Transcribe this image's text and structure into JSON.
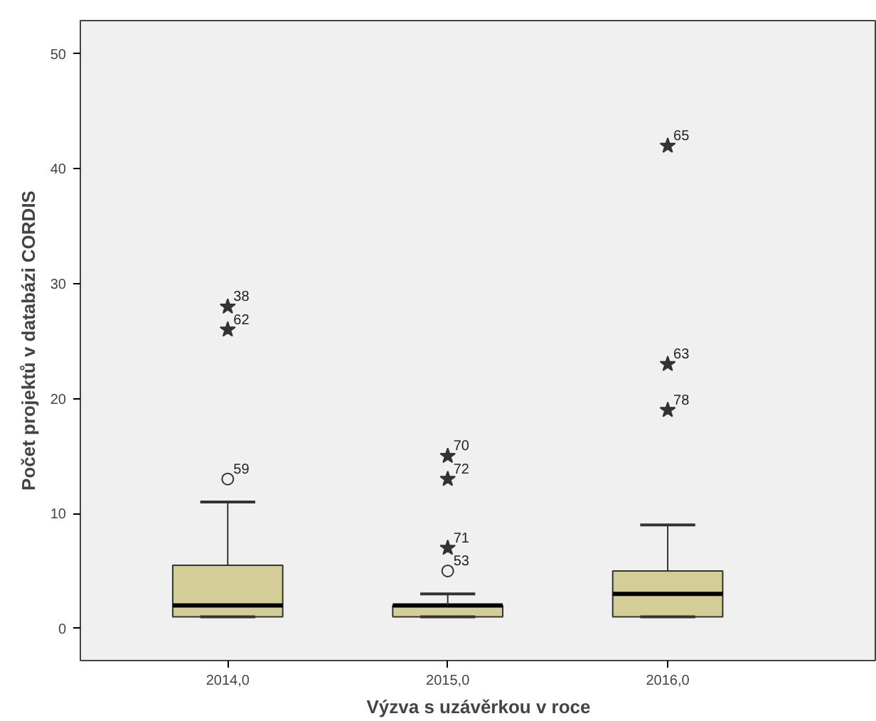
{
  "chart_data": {
    "type": "box",
    "xlabel": "Výzva s uzávěrkou v roce",
    "ylabel": "Počet projektů v databázi CORDIS",
    "categories": [
      "2014,0",
      "2015,0",
      "2016,0"
    ],
    "color": "#d3ce97",
    "boxes": [
      {
        "low": 1,
        "q1": 1,
        "median": 2,
        "q3": 5.5,
        "high": 11
      },
      {
        "low": 1,
        "q1": 1,
        "median": 2,
        "q3": 2,
        "high": 3
      },
      {
        "low": 1,
        "q1": 1,
        "median": 3,
        "q3": 5,
        "high": 9
      }
    ],
    "series": [
      {
        "type": "scatter",
        "marker": "star",
        "color": "#333333",
        "x": [
          "2014,0",
          "2014,0",
          "2015,0",
          "2015,0",
          "2015,0",
          "2016,0",
          "2016,0",
          "2016,0"
        ],
        "values": [
          28,
          26,
          15,
          13,
          7,
          42,
          23,
          19
        ]
      },
      {
        "type": "scatter",
        "marker": "circle",
        "color": "#333333",
        "x": [
          "2014,0",
          "2015,0"
        ],
        "values": [
          13,
          5
        ]
      }
    ],
    "annotations": [
      {
        "text": "38",
        "x": "2014,0",
        "y": 28
      },
      {
        "text": "62",
        "x": "2014,0",
        "y": 26
      },
      {
        "text": "59",
        "x": "2014,0",
        "y": 13
      },
      {
        "text": "70",
        "x": "2015,0",
        "y": 15
      },
      {
        "text": "72",
        "x": "2015,0",
        "y": 13
      },
      {
        "text": "71",
        "x": "2015,0",
        "y": 7
      },
      {
        "text": "53",
        "x": "2015,0",
        "y": 5
      },
      {
        "text": "65",
        "x": "2016,0",
        "y": 42
      },
      {
        "text": "63",
        "x": "2016,0",
        "y": 23
      },
      {
        "text": "78",
        "x": "2016,0",
        "y": 19
      }
    ],
    "ylim": [
      -2.8,
      52.9
    ],
    "yticks": [
      0,
      10,
      20,
      30,
      40,
      50
    ],
    "grid": false
  }
}
